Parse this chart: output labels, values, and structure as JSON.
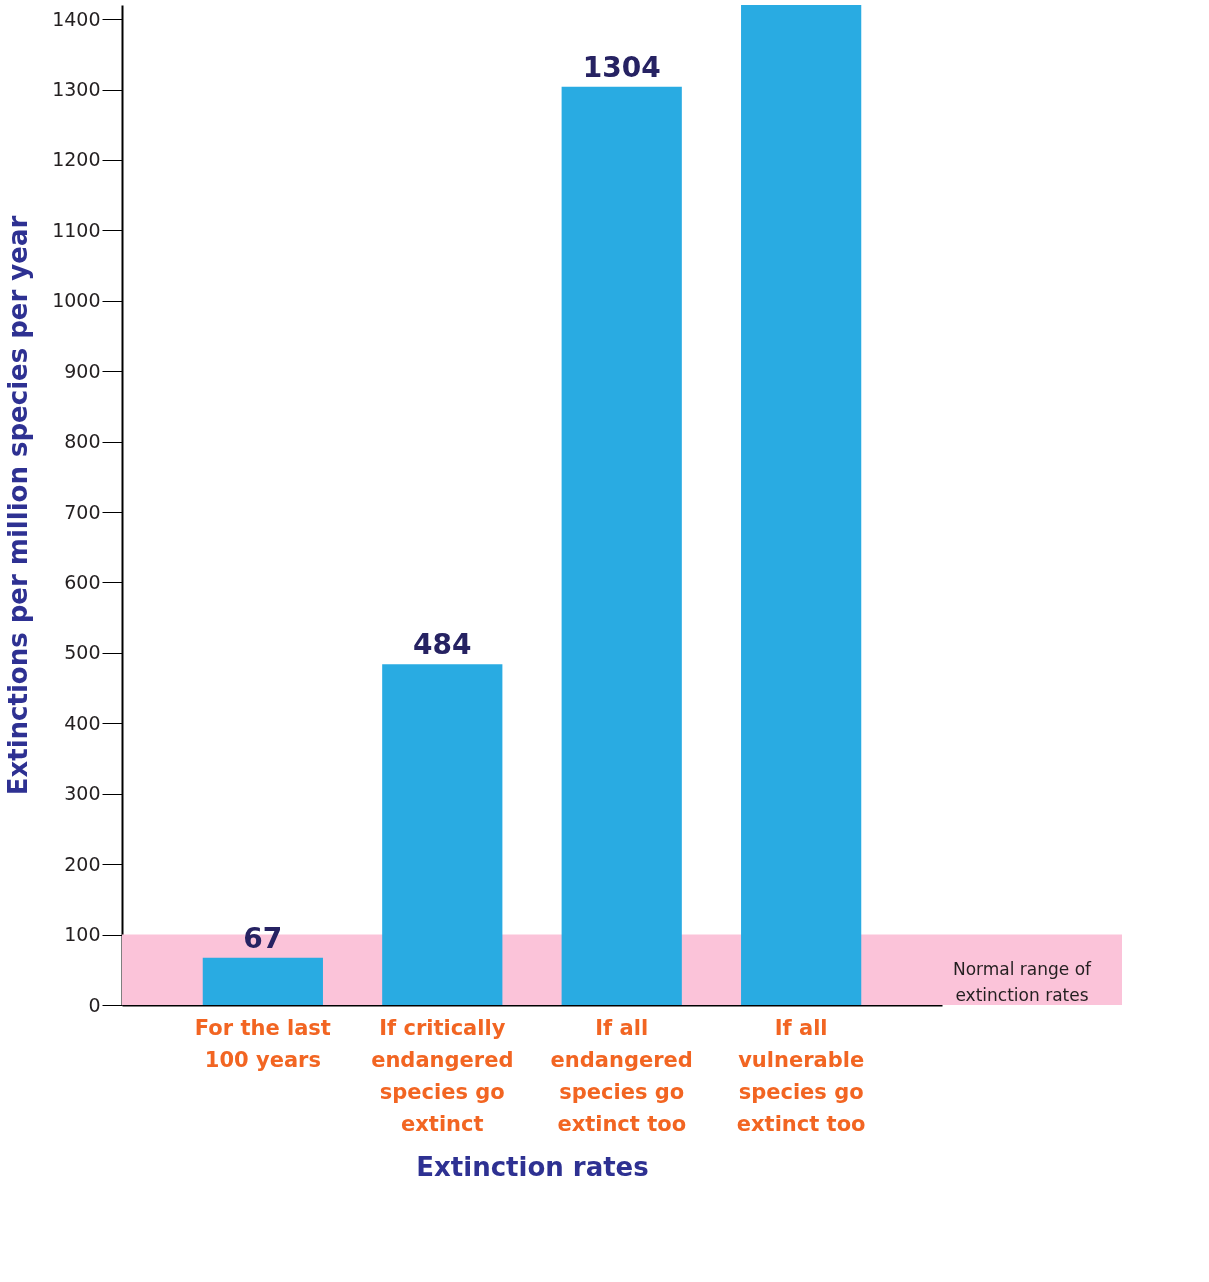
{
  "chart_data": {
    "type": "bar",
    "xlabel": "Extinction rates",
    "ylabel": "Extinctions per million species per year",
    "categories": [
      "For the last\n100 years",
      "If critically\nendangered\nspecies go\nextinct",
      "If all\nendangered\nspecies go\nextinct too",
      "If all\nvulnerable\nspecies go\nextinct too"
    ],
    "values": [
      67,
      484,
      1304,
      1420
    ],
    "value_labels": [
      "67",
      "484",
      "1304",
      null
    ],
    "color": "#29abe2",
    "ylim": [
      0,
      1420
    ],
    "yticks": [
      0,
      100,
      200,
      300,
      400,
      500,
      600,
      700,
      800,
      900,
      1000,
      1100,
      1200,
      1300,
      1400
    ],
    "bands": [
      {
        "axis": "y",
        "from": 0,
        "to": 100,
        "label": "Normal range of\nextinction rates",
        "color": "#fbc3d9"
      }
    ],
    "grid": false
  }
}
